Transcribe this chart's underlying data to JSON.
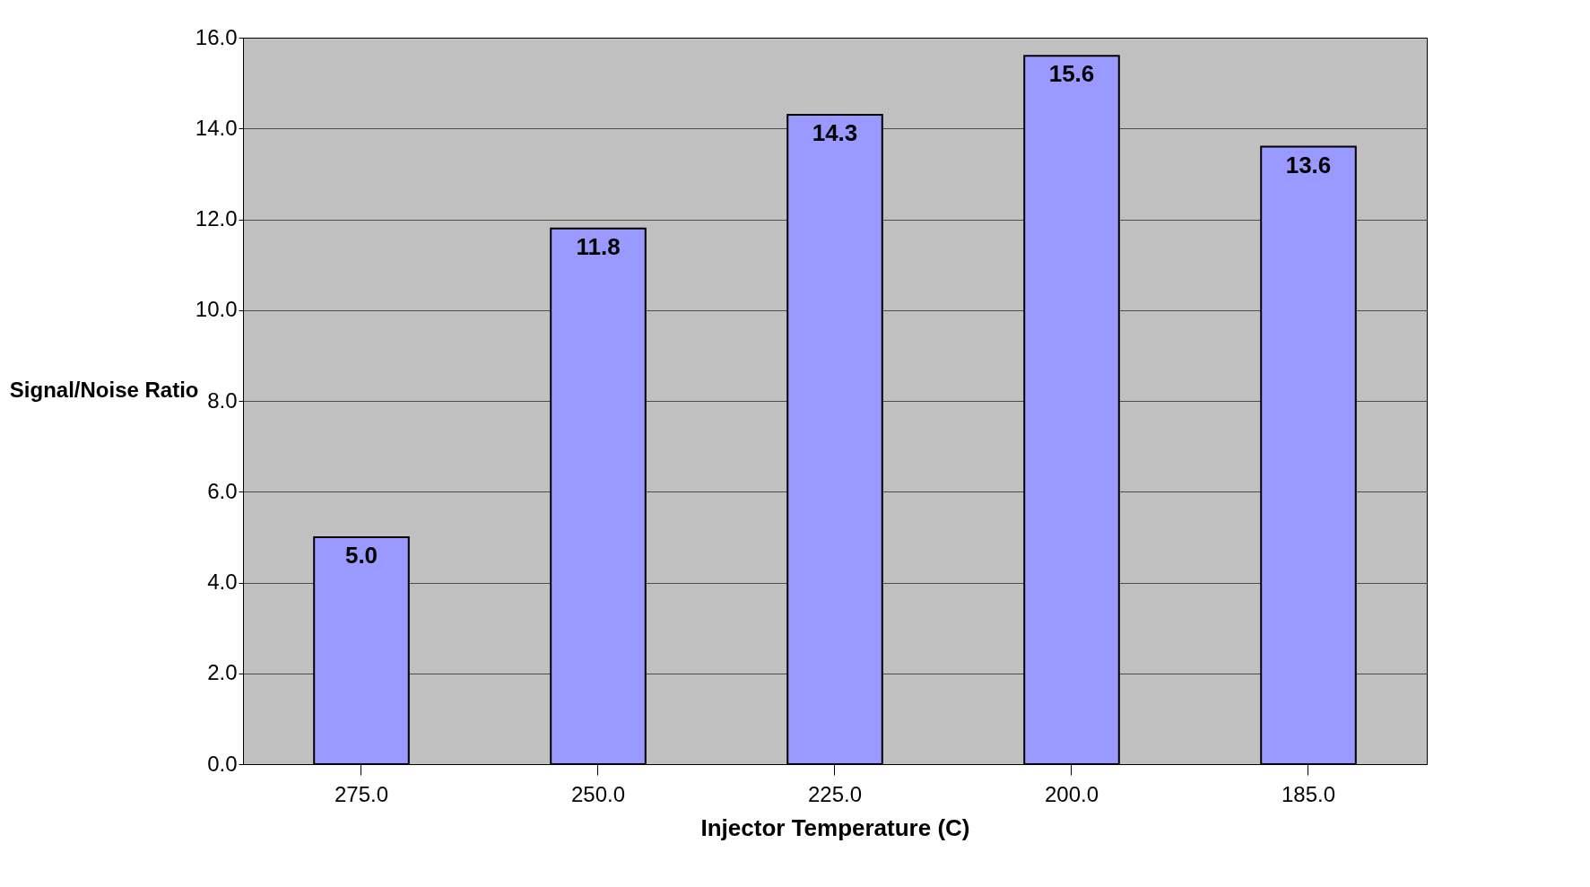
{
  "chart_data": {
    "type": "bar",
    "xlabel": "Injector Temperature (C)",
    "ylabel": "Signal/Noise Ratio",
    "categories": [
      "275.0",
      "250.0",
      "225.0",
      "200.0",
      "185.0"
    ],
    "values": [
      5.0,
      11.8,
      14.3,
      15.6,
      13.6
    ],
    "value_labels": [
      "5.0",
      "11.8",
      "14.3",
      "15.6",
      "13.6"
    ],
    "color": "#9999ff",
    "ylim": [
      0,
      16
    ],
    "yticks": [
      {
        "value": 0,
        "label": "0.0"
      },
      {
        "value": 2,
        "label": "2.0"
      },
      {
        "value": 4,
        "label": "4.0"
      },
      {
        "value": 6,
        "label": "6.0"
      },
      {
        "value": 8,
        "label": "8.0"
      },
      {
        "value": 10,
        "label": "10.0"
      },
      {
        "value": 12,
        "label": "12.0"
      },
      {
        "value": 14,
        "label": "14.0"
      },
      {
        "value": 16,
        "label": "16.0"
      }
    ],
    "grid": true
  }
}
